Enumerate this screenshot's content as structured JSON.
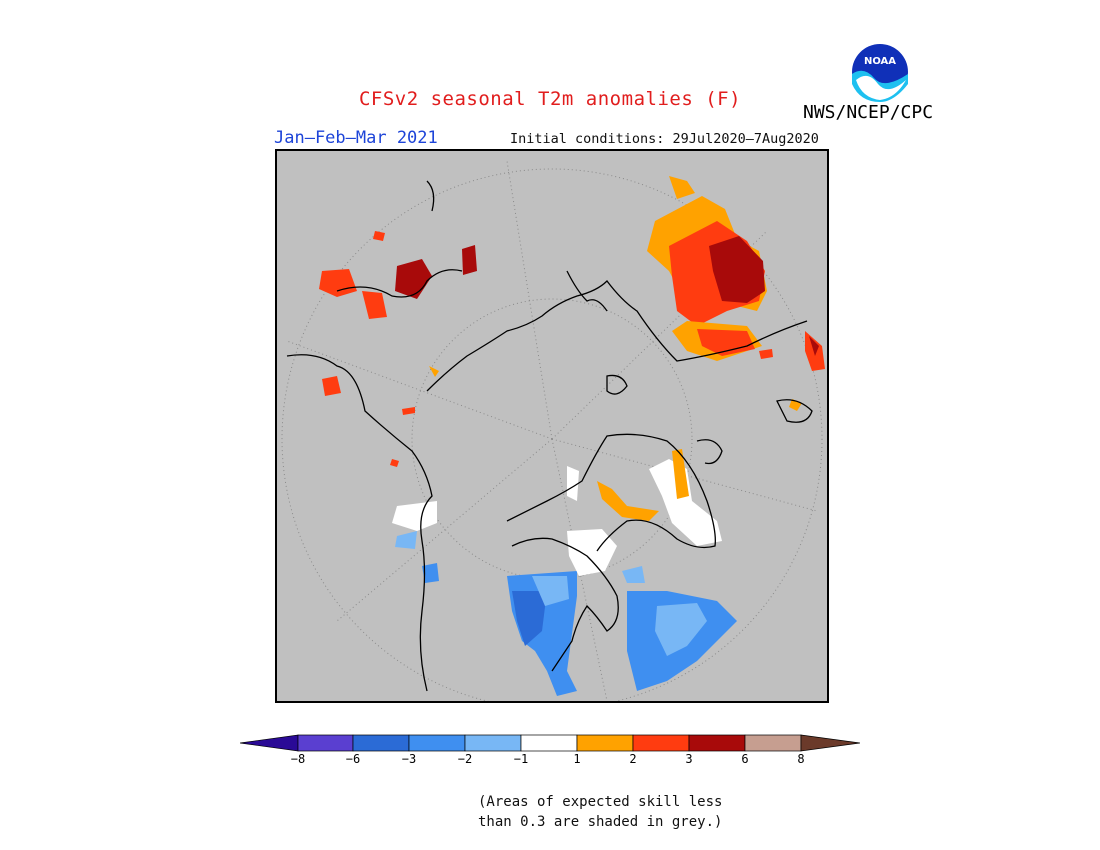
{
  "header": {
    "title": "CFSv2 seasonal T2m anomalies (F)",
    "agency": "NWS/NCEP/CPC",
    "logo_text": "NOAA",
    "season": "Jan–Feb–Mar 2021",
    "initial_conditions": "Initial conditions: 29Jul2020–7Aug2020"
  },
  "map": {
    "projection": "north-polar-stereographic",
    "background_color": "#c0c0c0",
    "grid": true,
    "regions": [
      {
        "name": "western-russia-siberia",
        "anomaly_class": "3 to 6"
      },
      {
        "name": "scandinavia-eastern-europe",
        "anomaly_class": "2 to 3"
      },
      {
        "name": "northern-greenland",
        "anomaly_class": "-1 to 1"
      },
      {
        "name": "central-canada",
        "anomaly_class": "-3 to -2"
      },
      {
        "name": "eastern-siberia-small-patches",
        "anomaly_class": "3 to 6"
      }
    ]
  },
  "legend": {
    "colors": [
      "#2a0a96",
      "#5a3fd0",
      "#2b6bd6",
      "#3f8ff0",
      "#78b7f5",
      "#ffffff",
      "#ffa200",
      "#ff3c10",
      "#a80a0a",
      "#c69e90",
      "#6b3a2a"
    ],
    "tick_labels": [
      "−8",
      "−6",
      "−3",
      "−2",
      "−1",
      "1",
      "2",
      "3",
      "6",
      "8"
    ],
    "note_line1": "(Areas of expected skill less",
    "note_line2": "than 0.3 are shaded in grey.)"
  }
}
